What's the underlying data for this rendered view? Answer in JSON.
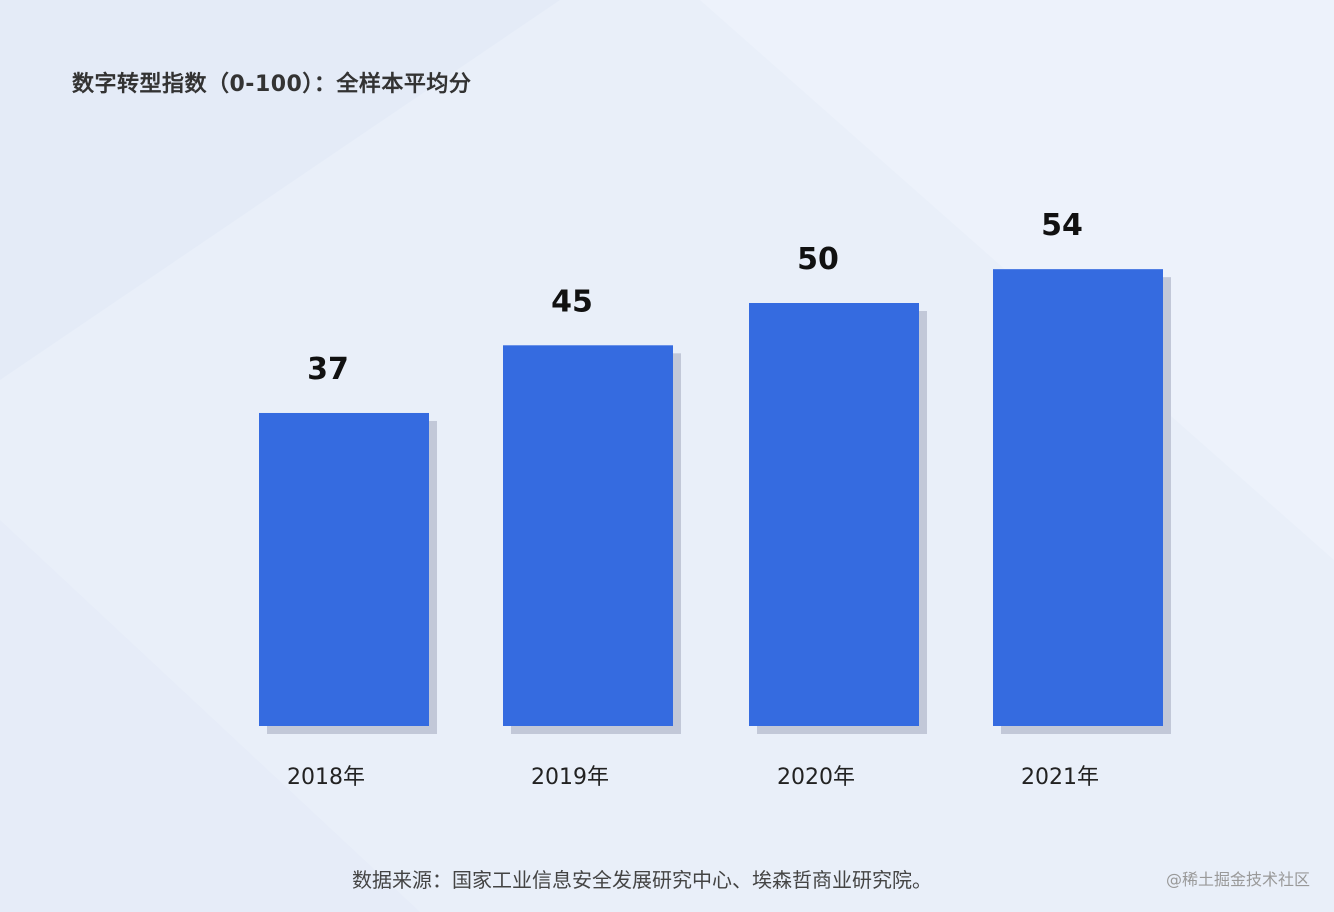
{
  "chart_data": {
    "type": "bar",
    "title": "数字转型指数（0-100）：全样本平均分",
    "categories": [
      "2018年",
      "2019年",
      "2020年",
      "2021年"
    ],
    "values": [
      37,
      45,
      50,
      54
    ],
    "xlabel": "",
    "ylabel": "",
    "ylim": [
      0,
      100
    ],
    "grid": false,
    "bar_color": "#356be0",
    "shadow_color": "#c2c8d8",
    "label_color": "#111111"
  },
  "source": "数据来源：国家工业信息安全发展研究中心、埃森哲商业研究院。",
  "watermark": "@稀土掘金技术社区"
}
